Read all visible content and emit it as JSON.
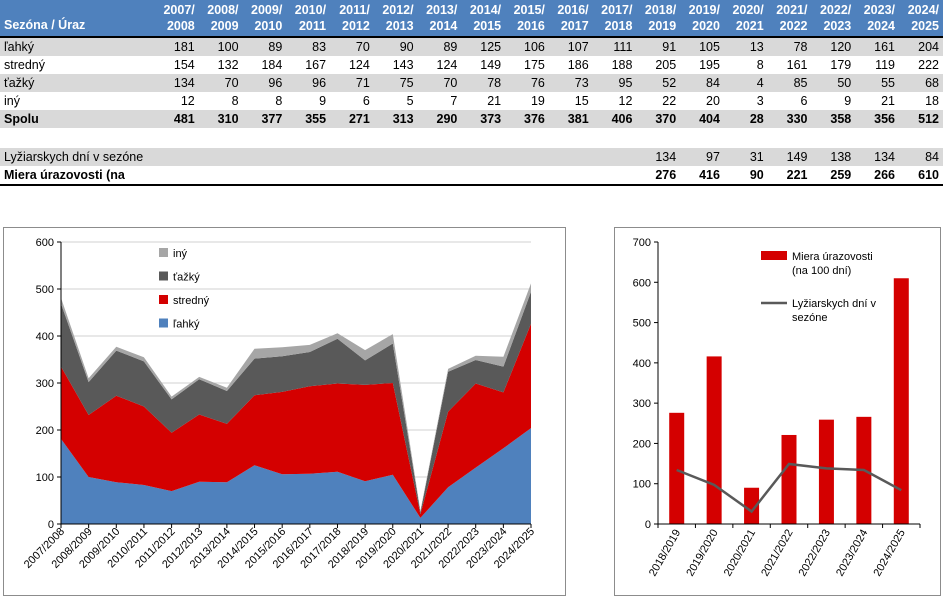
{
  "table": {
    "corner_label": "Sezóna / Úraz",
    "seasons": [
      [
        "2007/",
        "2008"
      ],
      [
        "2008/",
        "2009"
      ],
      [
        "2009/",
        "2010"
      ],
      [
        "2010/",
        "2011"
      ],
      [
        "2011/",
        "2012"
      ],
      [
        "2012/",
        "2013"
      ],
      [
        "2013/",
        "2014"
      ],
      [
        "2014/",
        "2015"
      ],
      [
        "2015/",
        "2016"
      ],
      [
        "2016/",
        "2017"
      ],
      [
        "2017/",
        "2018"
      ],
      [
        "2018/",
        "2019"
      ],
      [
        "2019/",
        "2020"
      ],
      [
        "2020/",
        "2021"
      ],
      [
        "2021/",
        "2022"
      ],
      [
        "2022/",
        "2023"
      ],
      [
        "2023/",
        "2024"
      ],
      [
        "2024/",
        "2025"
      ]
    ],
    "rows": [
      {
        "label": "ľahký",
        "values": [
          "181",
          "100",
          "89",
          "83",
          "70",
          "90",
          "89",
          "125",
          "106",
          "107",
          "111",
          "91",
          "105",
          "13",
          "78",
          "120",
          "161",
          "204"
        ],
        "shade": true,
        "bold": false
      },
      {
        "label": "stredný",
        "values": [
          "154",
          "132",
          "184",
          "167",
          "124",
          "143",
          "124",
          "149",
          "175",
          "186",
          "188",
          "205",
          "195",
          "8",
          "161",
          "179",
          "119",
          "222"
        ],
        "shade": false,
        "bold": false
      },
      {
        "label": "ťažký",
        "values": [
          "134",
          "70",
          "96",
          "96",
          "71",
          "75",
          "70",
          "78",
          "76",
          "73",
          "95",
          "52",
          "84",
          "4",
          "85",
          "50",
          "55",
          "68"
        ],
        "shade": true,
        "bold": false
      },
      {
        "label": "iný",
        "values": [
          "12",
          "8",
          "8",
          "9",
          "6",
          "5",
          "7",
          "21",
          "19",
          "15",
          "12",
          "22",
          "20",
          "3",
          "6",
          "9",
          "21",
          "18"
        ],
        "shade": false,
        "bold": false
      },
      {
        "label": "Spolu",
        "values": [
          "481",
          "310",
          "377",
          "355",
          "271",
          "313",
          "290",
          "373",
          "376",
          "381",
          "406",
          "370",
          "404",
          "28",
          "330",
          "358",
          "356",
          "512"
        ],
        "shade": true,
        "bold": true
      }
    ],
    "rows2": [
      {
        "label": "Lyžiarskych dní v sezóne",
        "values": [
          "",
          "",
          "",
          "",
          "",
          "",
          "",
          "",
          "",
          "",
          "",
          "134",
          "97",
          "31",
          "149",
          "138",
          "134",
          "84"
        ],
        "shade": true,
        "bold": false
      },
      {
        "label": "Miera úrazovosti (na",
        "values": [
          "",
          "",
          "",
          "",
          "",
          "",
          "",
          "",
          "",
          "",
          "",
          "276",
          "416",
          "90",
          "221",
          "259",
          "266",
          "610"
        ],
        "shade": false,
        "bold": true
      }
    ]
  },
  "chart_data": [
    {
      "type": "area",
      "stacked": true,
      "categories": [
        "2007/2008",
        "2008/2009",
        "2009/2010",
        "2010/2011",
        "2011/2012",
        "2012/2013",
        "2013/2014",
        "2014/2015",
        "2015/2016",
        "2016/2017",
        "2017/2018",
        "2018/2019",
        "2019/2020",
        "2020/2021",
        "2021/2022",
        "2022/2023",
        "2023/2024",
        "2024/2025"
      ],
      "series": [
        {
          "name": "ľahký",
          "color": "#4f81bd",
          "values": [
            181,
            100,
            89,
            83,
            70,
            90,
            89,
            125,
            106,
            107,
            111,
            91,
            105,
            13,
            78,
            120,
            161,
            204
          ]
        },
        {
          "name": "stredný",
          "color": "#d40000",
          "values": [
            154,
            132,
            184,
            167,
            124,
            143,
            124,
            149,
            175,
            186,
            188,
            205,
            195,
            8,
            161,
            179,
            119,
            222
          ]
        },
        {
          "name": "ťažký",
          "color": "#595959",
          "values": [
            134,
            70,
            96,
            96,
            71,
            75,
            70,
            78,
            76,
            73,
            95,
            52,
            84,
            4,
            85,
            50,
            55,
            68
          ]
        },
        {
          "name": "iný",
          "color": "#a6a6a6",
          "values": [
            12,
            8,
            8,
            9,
            6,
            5,
            7,
            21,
            19,
            15,
            12,
            22,
            20,
            3,
            6,
            9,
            21,
            18
          ]
        }
      ],
      "ylim": [
        0,
        600
      ],
      "yticks": [
        "0",
        "100",
        "200",
        "300",
        "400",
        "500",
        "600"
      ],
      "legend_position": "top-center",
      "legend_order": [
        "iný",
        "ťažký",
        "stredný",
        "ľahký"
      ]
    },
    {
      "type": "bar",
      "categories": [
        "2018/2019",
        "2019/2020",
        "2020/2021",
        "2021/2022",
        "2022/2023",
        "2023/2024",
        "2024/2025"
      ],
      "series": [
        {
          "name": "Miera úrazovosti (na 100 dní)",
          "legend_lines": [
            "Miera úrazovosti",
            "(na 100 dní)"
          ],
          "type": "bar",
          "color": "#d40000",
          "values": [
            276,
            416,
            90,
            221,
            259,
            266,
            610
          ]
        },
        {
          "name": "Lyžiarskych dní v sezóne",
          "legend_lines": [
            "Lyžiarskych dní v",
            "sezóne"
          ],
          "type": "line",
          "color": "#595959",
          "values": [
            134,
            97,
            31,
            149,
            138,
            134,
            84
          ]
        }
      ],
      "ylim": [
        0,
        700
      ],
      "yticks": [
        "0",
        "100",
        "200",
        "300",
        "400",
        "500",
        "600",
        "700"
      ],
      "legend_position": "top-right"
    }
  ]
}
